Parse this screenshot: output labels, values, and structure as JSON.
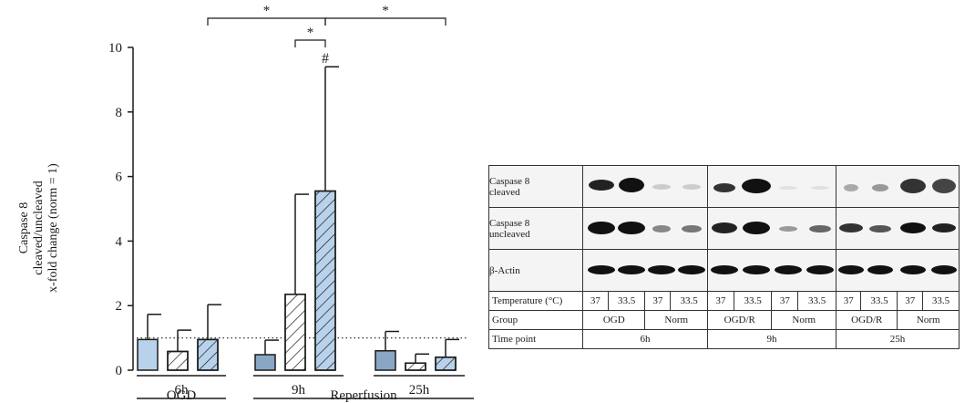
{
  "colors": {
    "light_blue": "#b8d2ec",
    "steel_blue": "#89a7c4",
    "outline": "#1a1a1a"
  },
  "chart_data": {
    "type": "bar",
    "ylabel": [
      "Caspase 8",
      "cleaved/uncleaved",
      "x-fold change (norm = 1)"
    ],
    "ylim": [
      0,
      10
    ],
    "yticks": [
      "0",
      "2",
      "4",
      "6",
      "8",
      "10"
    ],
    "reference_line": 1,
    "groups": [
      {
        "label": "6h",
        "phase": "OGD"
      },
      {
        "label": "9h",
        "phase": "Reperfusion"
      },
      {
        "label": "25h",
        "phase": "Reperfusion"
      }
    ],
    "phases": [
      "OGD",
      "Reperfusion"
    ],
    "bars": [
      {
        "group": 0,
        "fill": "light_blue",
        "hatch": false,
        "value": 0.95,
        "err": 0.78
      },
      {
        "group": 0,
        "fill": "white",
        "hatch": true,
        "value": 0.58,
        "err": 0.66
      },
      {
        "group": 0,
        "fill": "light_blue",
        "hatch": true,
        "value": 0.95,
        "err": 1.08
      },
      {
        "group": 1,
        "fill": "steel_blue",
        "hatch": false,
        "value": 0.48,
        "err": 0.45
      },
      {
        "group": 1,
        "fill": "white",
        "hatch": true,
        "value": 2.35,
        "err": 3.1
      },
      {
        "group": 1,
        "fill": "light_blue",
        "hatch": true,
        "value": 5.55,
        "err": 3.85
      },
      {
        "group": 2,
        "fill": "steel_blue",
        "hatch": false,
        "value": 0.6,
        "err": 0.6
      },
      {
        "group": 2,
        "fill": "white",
        "hatch": true,
        "value": 0.22,
        "err": 0.28
      },
      {
        "group": 2,
        "fill": "light_blue",
        "hatch": true,
        "value": 0.4,
        "err": 0.55
      }
    ],
    "significance": [
      {
        "from": 4,
        "to": 5,
        "label": "*"
      },
      {
        "from": 2,
        "to": 5,
        "label": "*"
      },
      {
        "from": 5,
        "to": 8,
        "label": "*"
      }
    ],
    "marker": {
      "bar": 5,
      "label": "#"
    }
  },
  "blot": {
    "rows": [
      {
        "label": [
          "Caspase 8",
          "cleaved"
        ]
      },
      {
        "label": [
          "Caspase 8",
          "uncleaved"
        ]
      },
      {
        "label": [
          "β-Actin"
        ]
      }
    ],
    "temperature_label": "Temperature (°C)",
    "temperatures": [
      "37",
      "33.5",
      "37",
      "33.5",
      "37",
      "33.5",
      "37",
      "33.5",
      "37",
      "33.5",
      "37",
      "33.5"
    ],
    "group_label": "Group",
    "groups": [
      "OGD",
      "Norm",
      "OGD/R",
      "Norm",
      "OGD/R",
      "Norm"
    ],
    "time_label": "Time point",
    "timepoints": [
      "6h",
      "9h",
      "25h"
    ]
  }
}
